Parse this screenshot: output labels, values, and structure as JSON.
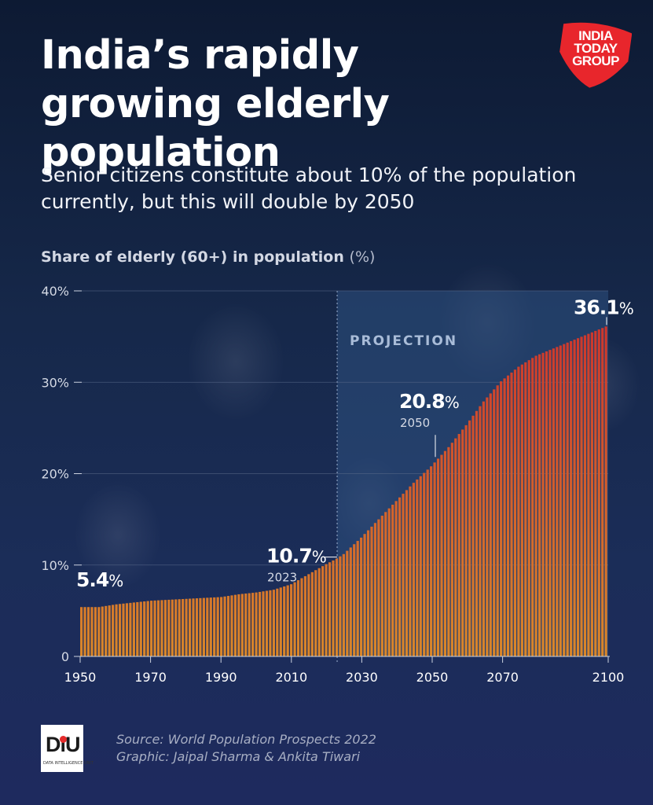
{
  "title": "India’s rapidly growing elderly population",
  "subtitle": "Senior citizens constitute about 10% of the population currently, but this will double by 2050",
  "brand": {
    "line1": "INDIA",
    "line2": "TODAY",
    "line3": "GROUP",
    "color": "#e8262c"
  },
  "chart_title": "Share of elderly (60+) in population",
  "chart_unit": "(%)",
  "footer": {
    "source": "Source: World Population Prospects 2022",
    "graphic": "Graphic: Jaipal Sharma & Ankita Tiwari",
    "logo_text": "DiU",
    "logo_subtext": "DATA INTELLIGENCE UNIT"
  },
  "chart_data": {
    "type": "bar",
    "x_range": [
      1950,
      2100
    ],
    "ylim": [
      0,
      40
    ],
    "y_ticks": [
      0,
      10,
      20,
      30,
      40
    ],
    "y_tick_labels": [
      "0",
      "10%",
      "20%",
      "30%",
      "40%"
    ],
    "x_ticks": [
      1950,
      1970,
      1990,
      2010,
      2030,
      2050,
      2070,
      2100
    ],
    "projection_label": "PROJECTION",
    "projection_start": 2023,
    "grid": true,
    "anchor_points": [
      [
        1950,
        5.4
      ],
      [
        1955,
        5.4
      ],
      [
        1960,
        5.7
      ],
      [
        1965,
        5.9
      ],
      [
        1970,
        6.1
      ],
      [
        1975,
        6.2
      ],
      [
        1980,
        6.3
      ],
      [
        1985,
        6.4
      ],
      [
        1990,
        6.5
      ],
      [
        1995,
        6.8
      ],
      [
        2000,
        7.0
      ],
      [
        2005,
        7.3
      ],
      [
        2010,
        7.9
      ],
      [
        2015,
        9.0
      ],
      [
        2020,
        10.1
      ],
      [
        2023,
        10.7
      ],
      [
        2025,
        11.2
      ],
      [
        2030,
        13.0
      ],
      [
        2035,
        15.0
      ],
      [
        2040,
        17.0
      ],
      [
        2045,
        19.0
      ],
      [
        2050,
        20.8
      ],
      [
        2055,
        22.9
      ],
      [
        2060,
        25.3
      ],
      [
        2065,
        27.9
      ],
      [
        2070,
        30.1
      ],
      [
        2075,
        31.7
      ],
      [
        2080,
        32.9
      ],
      [
        2085,
        33.7
      ],
      [
        2090,
        34.5
      ],
      [
        2095,
        35.3
      ],
      [
        2100,
        36.1
      ]
    ],
    "annotations": [
      {
        "year": 1950,
        "value": "5.4",
        "unit": "%",
        "sub": ""
      },
      {
        "year": 2023,
        "value": "10.7",
        "unit": "%",
        "sub": "2023"
      },
      {
        "year": 2050,
        "value": "20.8",
        "unit": "%",
        "sub": "2050"
      },
      {
        "year": 2100,
        "value": "36.1",
        "unit": "%",
        "sub": ""
      }
    ],
    "colors": {
      "bar_low": "#d9872a",
      "bar_high": "#cc2d2d",
      "projection_bg": "#2e5080",
      "grid": "#5a6a8a"
    }
  }
}
